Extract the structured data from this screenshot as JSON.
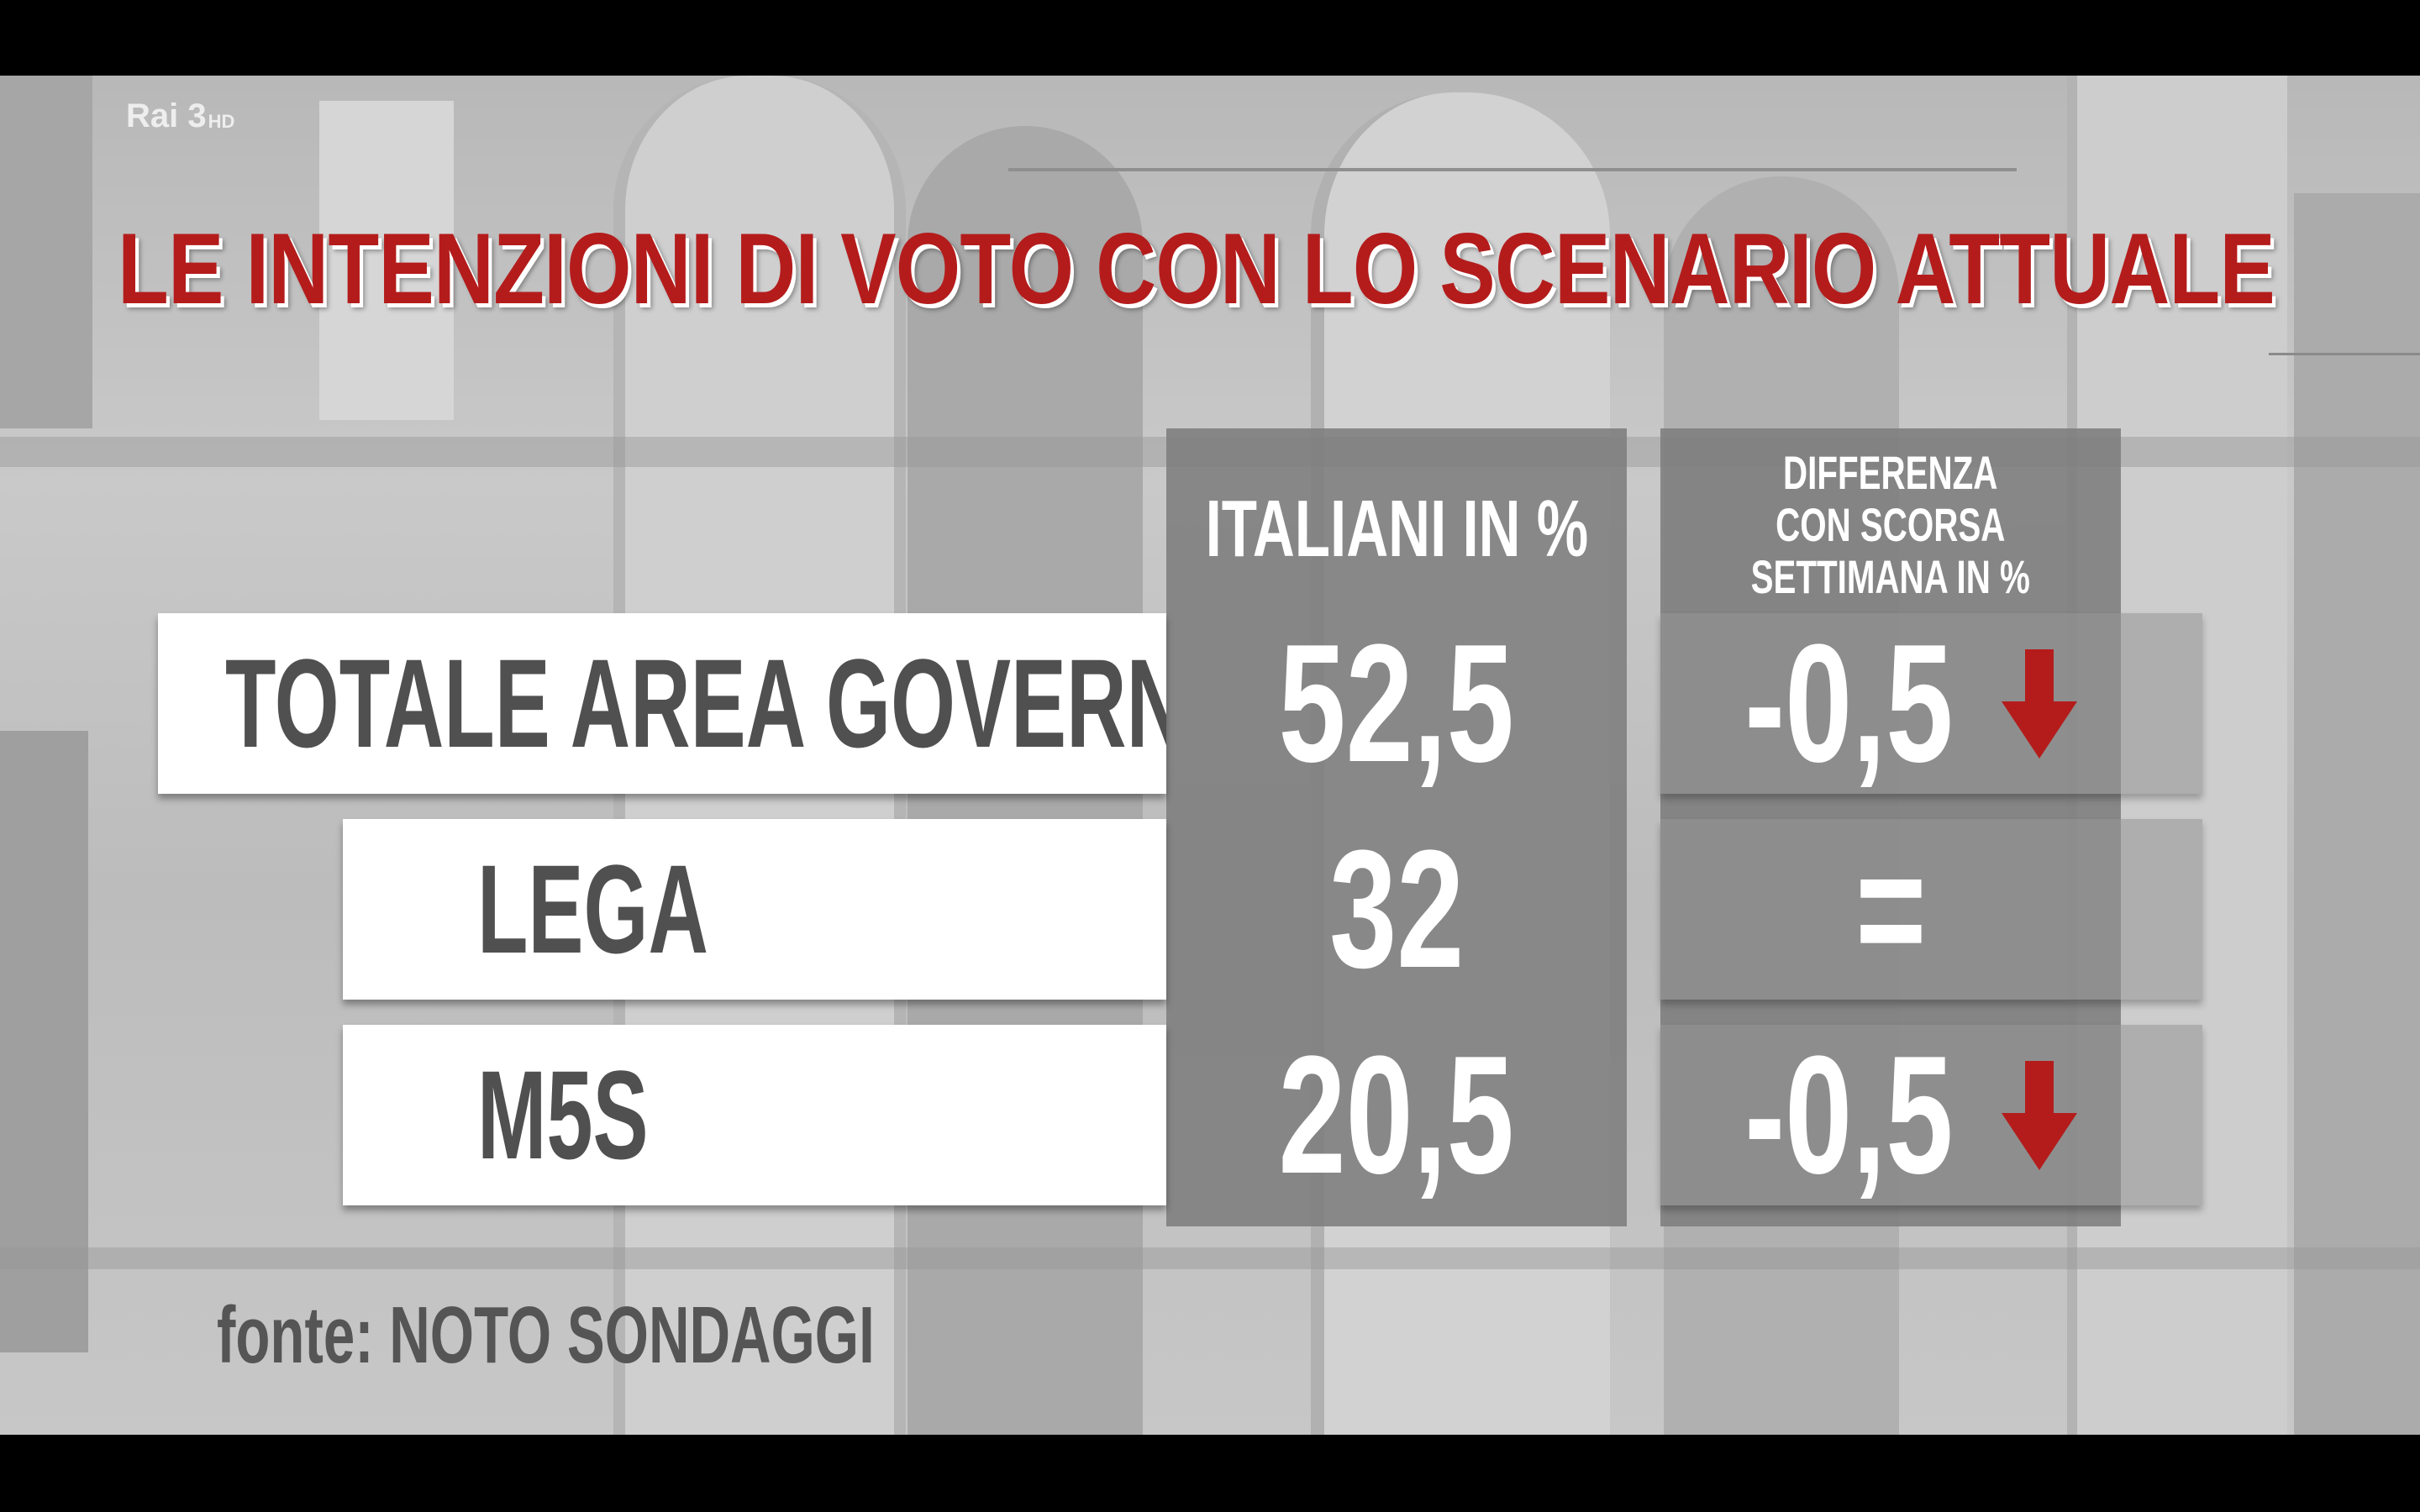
{
  "broadcaster": {
    "logo_text": "Rai 3",
    "logo_suffix": "HD"
  },
  "title": "LE INTENZIONI DI VOTO CON LO SCENARIO ATTUALE",
  "colors": {
    "title_red": "#b41c1c",
    "arrow_red": "#b41c1c",
    "label_text": "#505050",
    "value_text": "#ffffff"
  },
  "chart_data": {
    "type": "table",
    "title": "LE INTENZIONI DI VOTO CON LO SCENARIO ATTUALE",
    "columns": [
      "ITALIANI IN %",
      "DIFFERENZA\nCON SCORSA\nSETTIMANA IN %"
    ],
    "rows": [
      {
        "label": "TOTALE AREA GOVERNO",
        "value": "52,5",
        "diff": "-0,5",
        "trend": "down"
      },
      {
        "label": "LEGA",
        "value": "32",
        "diff": "=",
        "trend": "none"
      },
      {
        "label": "M5S",
        "value": "20,5",
        "diff": "-0,5",
        "trend": "down"
      }
    ],
    "source": "fonte: NOTO SONDAGGI"
  }
}
